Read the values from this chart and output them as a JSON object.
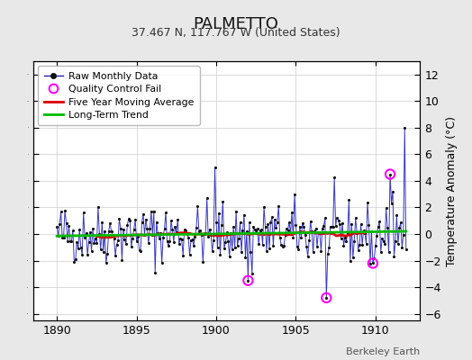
{
  "title": "PALMETTO",
  "subtitle": "37.467 N, 117.767 W (United States)",
  "ylabel": "Temperature Anomaly (°C)",
  "credit": "Berkeley Earth",
  "xlim": [
    1888.5,
    1912.8
  ],
  "ylim": [
    -6.5,
    13.0
  ],
  "yticks": [
    -6,
    -4,
    -2,
    0,
    2,
    4,
    6,
    8,
    10,
    12
  ],
  "xticks": [
    1890,
    1895,
    1900,
    1905,
    1910
  ],
  "background_color": "#e8e8e8",
  "plot_bg_color": "#ffffff",
  "raw_line_color": "#2222bb",
  "raw_dot_color": "#111111",
  "ma_color": "#dd0000",
  "trend_color": "#00bb00",
  "qc_color": "#ff00ff",
  "seed": 42,
  "start_year": 1890,
  "n_months": 264
}
